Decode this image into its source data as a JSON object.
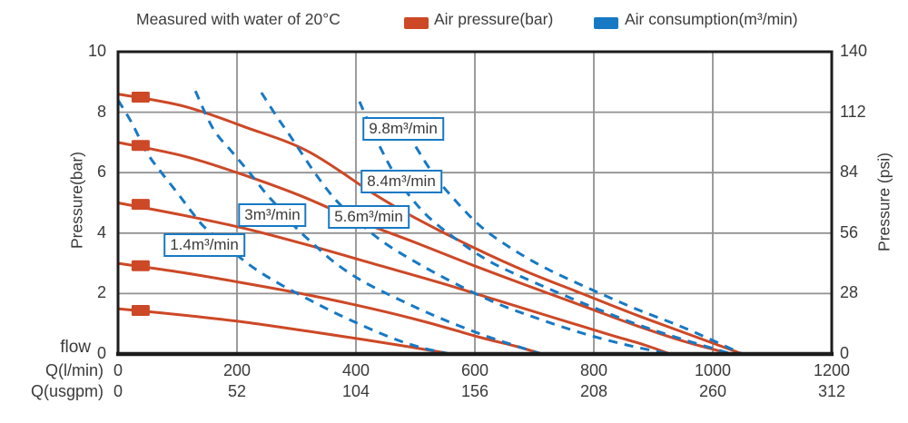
{
  "title": "Measured with water of 20°C",
  "legend": [
    {
      "label": "Air pressure(bar)",
      "color": "#cd4826"
    },
    {
      "label": "Air consumption(m³/min)",
      "color": "#1779c4"
    }
  ],
  "chart_data": {
    "type": "line",
    "title": "Measured with water of 20°C",
    "grid": true,
    "colors": {
      "pressure": "#cd4826",
      "consumption": "#1779c4",
      "gridline": "#919191",
      "border": "#1c1c1c"
    },
    "x_axis": {
      "corner_label": "flow",
      "range": [
        0,
        1200
      ],
      "gridline_step": 200,
      "rows": [
        {
          "name": "Q(l/min)",
          "ticks": [
            0,
            200,
            400,
            600,
            800,
            1000,
            1200
          ]
        },
        {
          "name": "Q(usgpm)",
          "ticks": [
            0,
            52,
            104,
            156,
            208,
            260,
            312
          ]
        }
      ]
    },
    "y_axis_left": {
      "label": "Pressure(bar)",
      "range": [
        0,
        10
      ],
      "ticks": [
        0,
        2,
        4,
        6,
        8,
        10
      ]
    },
    "y_axis_right": {
      "label": "Pressure (psi)",
      "range": [
        0,
        140
      ],
      "ticks": [
        0,
        28,
        56,
        84,
        112,
        140
      ]
    },
    "series": [
      {
        "name": "air-pressure 8.6 bar",
        "group": "pressure",
        "style": "solid",
        "marker": [
          38,
          8.5
        ],
        "points": [
          [
            0,
            8.6
          ],
          [
            110,
            8.2
          ],
          [
            215,
            7.5
          ],
          [
            320,
            6.7
          ],
          [
            430,
            5.3
          ],
          [
            500,
            4.5
          ],
          [
            600,
            3.5
          ],
          [
            690,
            2.7
          ],
          [
            780,
            2.0
          ],
          [
            870,
            1.3
          ],
          [
            960,
            0.65
          ],
          [
            1050,
            0
          ]
        ]
      },
      {
        "name": "air-pressure 7.0 bar",
        "group": "pressure",
        "style": "solid",
        "marker": [
          38,
          6.9
        ],
        "points": [
          [
            0,
            7.0
          ],
          [
            110,
            6.55
          ],
          [
            200,
            6.0
          ],
          [
            305,
            5.25
          ],
          [
            405,
            4.4
          ],
          [
            505,
            3.65
          ],
          [
            595,
            2.95
          ],
          [
            690,
            2.25
          ],
          [
            780,
            1.6
          ],
          [
            870,
            0.95
          ],
          [
            955,
            0.4
          ],
          [
            1032,
            0
          ]
        ]
      },
      {
        "name": "air-pressure 5.0 bar",
        "group": "pressure",
        "style": "solid",
        "marker": [
          38,
          4.95
        ],
        "points": [
          [
            0,
            5.0
          ],
          [
            107,
            4.6
          ],
          [
            214,
            4.15
          ],
          [
            320,
            3.6
          ],
          [
            427,
            3.0
          ],
          [
            534,
            2.4
          ],
          [
            634,
            1.8
          ],
          [
            733,
            1.2
          ],
          [
            825,
            0.65
          ],
          [
            885,
            0.3
          ],
          [
            928,
            0
          ]
        ]
      },
      {
        "name": "air-pressure 3.0 bar",
        "group": "pressure",
        "style": "solid",
        "marker": [
          38,
          2.92
        ],
        "points": [
          [
            0,
            3.0
          ],
          [
            107,
            2.7
          ],
          [
            214,
            2.34
          ],
          [
            321,
            1.95
          ],
          [
            427,
            1.5
          ],
          [
            519,
            1.05
          ],
          [
            611,
            0.54
          ],
          [
            672,
            0.24
          ],
          [
            713,
            0
          ]
        ]
      },
      {
        "name": "air-pressure 1.5 bar",
        "group": "pressure",
        "style": "solid",
        "marker": [
          38,
          1.44
        ],
        "points": [
          [
            0,
            1.5
          ],
          [
            107,
            1.29
          ],
          [
            214,
            1.05
          ],
          [
            321,
            0.75
          ],
          [
            412,
            0.48
          ],
          [
            489,
            0.24
          ],
          [
            534,
            0.09
          ],
          [
            560,
            0
          ]
        ]
      },
      {
        "name": "air-consumption 1.4 m³/min",
        "group": "consumption",
        "style": "dashed",
        "points": [
          [
            0,
            8.4
          ],
          [
            23,
            7.65
          ],
          [
            49,
            6.65
          ],
          [
            73,
            6.0
          ],
          [
            99,
            5.35
          ],
          [
            122,
            4.75
          ],
          [
            145,
            4.2
          ],
          [
            176,
            3.7
          ],
          [
            214,
            3.05
          ],
          [
            260,
            2.45
          ],
          [
            321,
            1.8
          ],
          [
            382,
            1.2
          ],
          [
            458,
            0.55
          ],
          [
            512,
            0.2
          ],
          [
            560,
            0
          ]
        ]
      },
      {
        "name": "air-consumption 3 m³/min",
        "group": "consumption",
        "style": "dashed",
        "points": [
          [
            130,
            8.7
          ],
          [
            160,
            7.45
          ],
          [
            191,
            6.7
          ],
          [
            221,
            6.0
          ],
          [
            247,
            5.35
          ],
          [
            272,
            4.8
          ],
          [
            298,
            4.2
          ],
          [
            328,
            3.65
          ],
          [
            366,
            3.0
          ],
          [
            412,
            2.4
          ],
          [
            473,
            1.8
          ],
          [
            534,
            1.25
          ],
          [
            611,
            0.65
          ],
          [
            672,
            0.25
          ],
          [
            713,
            0
          ]
        ]
      },
      {
        "name": "air-consumption 5.6 m³/min",
        "group": "consumption",
        "style": "dashed",
        "points": [
          [
            241,
            8.65
          ],
          [
            267,
            7.85
          ],
          [
            290,
            7.2
          ],
          [
            310,
            6.6
          ],
          [
            336,
            5.85
          ],
          [
            366,
            5.1
          ],
          [
            405,
            4.35
          ],
          [
            450,
            3.65
          ],
          [
            504,
            3.0
          ],
          [
            565,
            2.35
          ],
          [
            634,
            1.7
          ],
          [
            702,
            1.2
          ],
          [
            779,
            0.7
          ],
          [
            855,
            0.3
          ],
          [
            928,
            0
          ]
        ]
      },
      {
        "name": "air-consumption 8.4 m³/min",
        "group": "consumption",
        "style": "dashed",
        "points": [
          [
            406,
            8.35
          ],
          [
            438,
            6.95
          ],
          [
            473,
            5.7
          ],
          [
            516,
            4.65
          ],
          [
            565,
            3.85
          ],
          [
            626,
            3.05
          ],
          [
            702,
            2.35
          ],
          [
            786,
            1.65
          ],
          [
            870,
            1.0
          ],
          [
            947,
            0.5
          ],
          [
            1032,
            0
          ]
        ]
      },
      {
        "name": "air-consumption 9.8 m³/min",
        "group": "consumption",
        "style": "dashed",
        "points": [
          [
            473,
            7.8
          ],
          [
            504,
            6.75
          ],
          [
            534,
            5.85
          ],
          [
            573,
            4.95
          ],
          [
            611,
            4.2
          ],
          [
            657,
            3.55
          ],
          [
            718,
            2.85
          ],
          [
            794,
            2.15
          ],
          [
            870,
            1.5
          ],
          [
            954,
            0.85
          ],
          [
            1050,
            0
          ]
        ]
      }
    ],
    "curve_labels": [
      {
        "text": "1.4m³/min",
        "x": 145,
        "y": 3.6
      },
      {
        "text": "3m³/min",
        "x": 260,
        "y": 4.59
      },
      {
        "text": "5.6m³/min",
        "x": 421,
        "y": 4.53
      },
      {
        "text": "8.4m³/min",
        "x": 476,
        "y": 5.7
      },
      {
        "text": "9.8m³/min",
        "x": 479,
        "y": 7.44
      }
    ]
  }
}
